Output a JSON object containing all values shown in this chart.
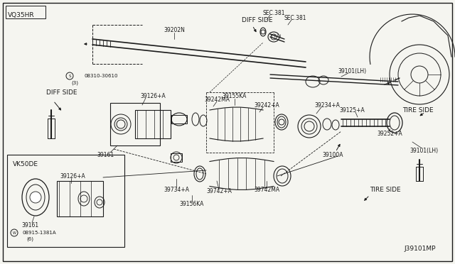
{
  "bg_color": "#f5f5f0",
  "line_color": "#1a1a1a",
  "labels": {
    "vq35hr": "VQ35HR",
    "vk50de": "VK50DE",
    "part_39202n": "39202N",
    "part_39155ka": "39155KA",
    "part_39242ma": "39242MA",
    "part_39242a": "39242+A",
    "part_39126a_1": "39126+A",
    "part_39126a_2": "39126+A",
    "part_39161_1": "39161",
    "part_39161_2": "39161",
    "part_39734a": "39734+A",
    "part_39742a": "39742+A",
    "part_39742ma": "39742MA",
    "part_39156ka": "39156KA",
    "part_39125a": "39125+A",
    "part_39252a": "39252+A",
    "part_39234a": "39234+A",
    "part_39100a": "39100A",
    "part_39101lh_1": "39101(LH)",
    "part_39101lh_2": "39101(LH)",
    "part_08310": "08310-30610",
    "part_08310b": "(3)",
    "part_08315": "08915-1381A",
    "part_08315b": "(6)",
    "diff_side_1": "DIFF SIDE",
    "diff_side_2": "DIFF SIDE",
    "tire_side_1": "TIRE SIDE",
    "tire_side_2": "TIRE SIDE",
    "sec381_1": "SEC.381",
    "sec381_2": "SEC.381",
    "diagram_id": "J39101MP"
  },
  "fs": 5.5,
  "fn": 6.5
}
